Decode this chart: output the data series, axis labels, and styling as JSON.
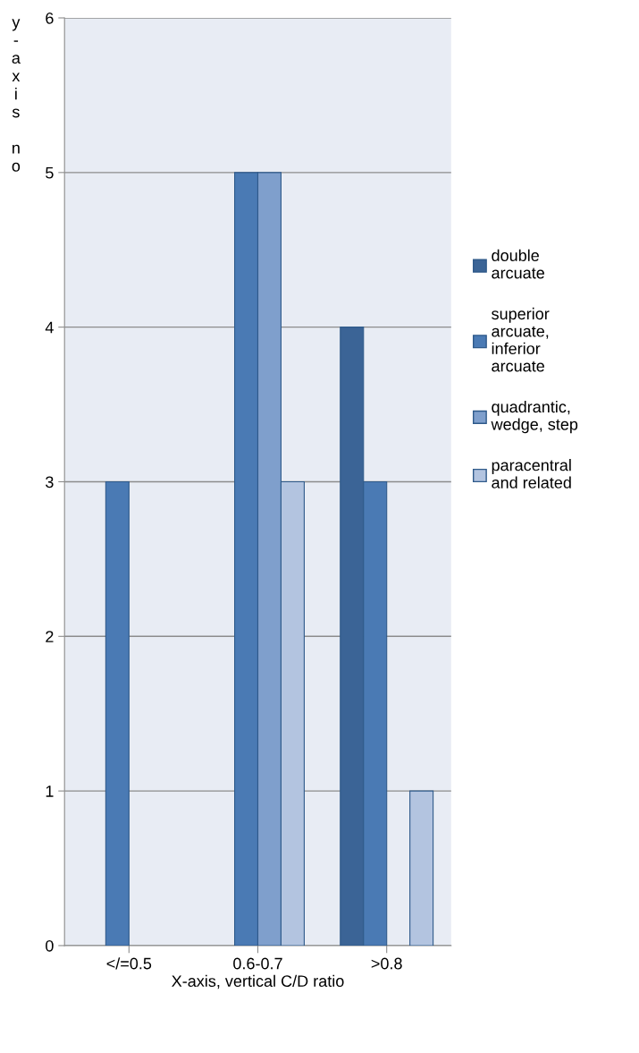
{
  "chart_data": {
    "type": "bar",
    "xlabel": "X-axis, vertical C/D ratio",
    "ylabel": "y-axis no",
    "categories": [
      "</=0.5",
      "0.6-0.7",
      ">0.8"
    ],
    "series": [
      {
        "name": "double arcuate",
        "color": "#3b6496",
        "values": [
          null,
          null,
          4
        ]
      },
      {
        "name": "superior arcuate, inferior arcuate",
        "color": "#4a7ab4",
        "values": [
          3,
          5,
          3
        ]
      },
      {
        "name": "quadrantic, wedge, step",
        "color": "#7f9fcc",
        "values": [
          null,
          5,
          null
        ]
      },
      {
        "name": "paracentral and related",
        "color": "#b3c4e0",
        "values": [
          null,
          3,
          1
        ]
      }
    ],
    "ylim": [
      0,
      6
    ],
    "yticks": [
      0,
      1,
      2,
      3,
      4,
      5,
      6
    ],
    "grid": "y",
    "legend": "right"
  }
}
